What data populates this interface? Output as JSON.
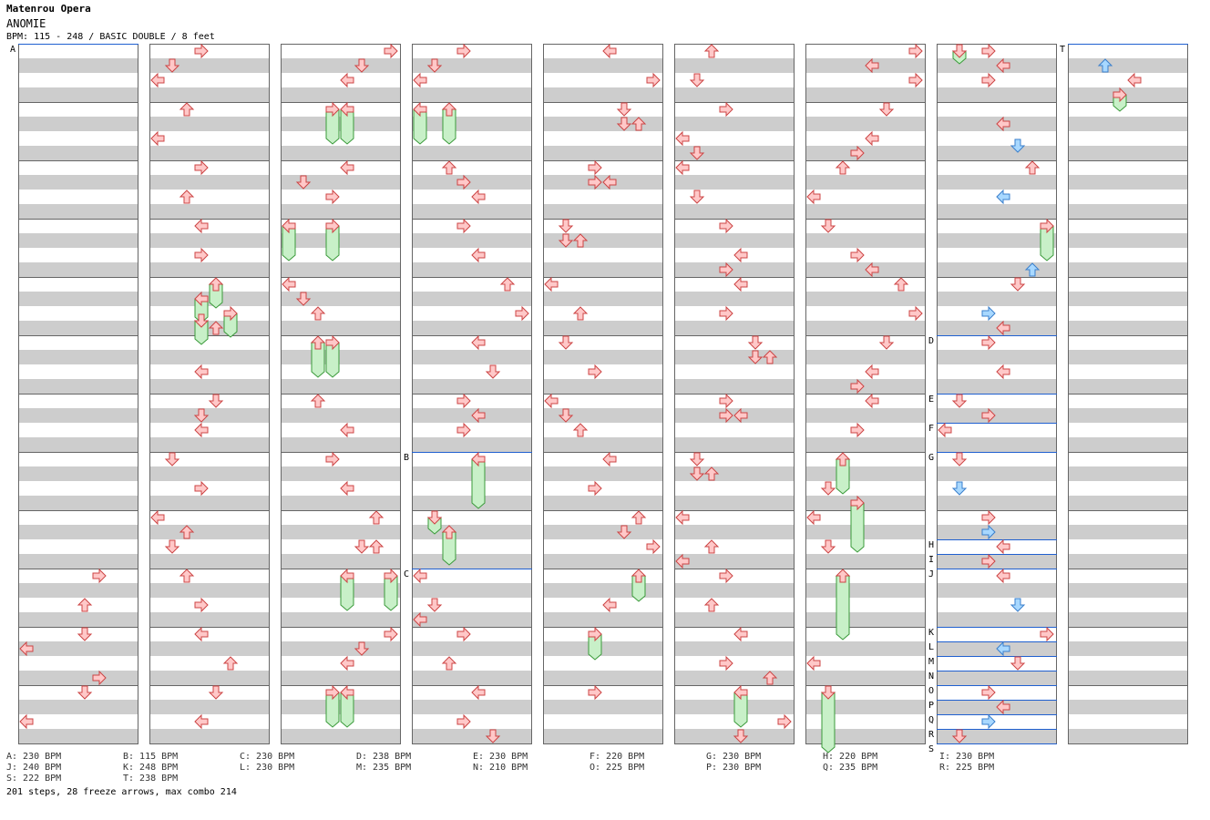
{
  "artist": "Matenrou Opera",
  "song_title": "ANOMIE",
  "chart_info": "BPM: 115 - 248 / BASIC DOUBLE / 8 feet",
  "stats": "201 steps, 28 freeze arrows, max combo 214",
  "colors": {
    "note": "#ffc8c8",
    "note_stroke": "#cc4444",
    "mine": "#a8d8ff",
    "mine_stroke": "#3a7fcc",
    "freeze": "#c8f0c8",
    "freeze_stroke": "#3a9a3a",
    "stripe": "#cdcdcd",
    "bpm_line": "#2060d0"
  },
  "columns": 9,
  "measures_per_column": 12,
  "bpm_changes": [
    {
      "label": "A",
      "bpm": "230 BPM",
      "column": 0,
      "measure": 0
    },
    {
      "label": "B",
      "bpm": "115 BPM",
      "column": 3,
      "measure": 7
    },
    {
      "label": "C",
      "bpm": "230 BPM",
      "column": 3,
      "measure": 9
    },
    {
      "label": "D",
      "bpm": "238 BPM",
      "column": 7,
      "measure": 5
    },
    {
      "label": "E",
      "bpm": "230 BPM",
      "column": 7,
      "measure": 6
    },
    {
      "label": "F",
      "bpm": "220 BPM",
      "column": 7,
      "measure": 6.5
    },
    {
      "label": "G",
      "bpm": "230 BPM",
      "column": 7,
      "measure": 7
    },
    {
      "label": "H",
      "bpm": "220 BPM",
      "column": 7,
      "measure": 8.5
    },
    {
      "label": "I",
      "bpm": "230 BPM",
      "column": 7,
      "measure": 8.75
    },
    {
      "label": "J",
      "bpm": "240 BPM",
      "column": 7,
      "measure": 9
    },
    {
      "label": "K",
      "bpm": "248 BPM",
      "column": 7,
      "measure": 10
    },
    {
      "label": "L",
      "bpm": "230 BPM",
      "column": 7,
      "measure": 10.25
    },
    {
      "label": "M",
      "bpm": "235 BPM",
      "column": 7,
      "measure": 10.5
    },
    {
      "label": "N",
      "bpm": "210 BPM",
      "column": 7,
      "measure": 10.75
    },
    {
      "label": "O",
      "bpm": "225 BPM",
      "column": 7,
      "measure": 11
    },
    {
      "label": "P",
      "bpm": "230 BPM",
      "column": 7,
      "measure": 11.25
    },
    {
      "label": "Q",
      "bpm": "235 BPM",
      "column": 7,
      "measure": 11.5
    },
    {
      "label": "R",
      "bpm": "225 BPM",
      "column": 7,
      "measure": 11.75
    },
    {
      "label": "S",
      "bpm": "222 BPM",
      "column": 7,
      "measure": 12
    },
    {
      "label": "T",
      "bpm": "238 BPM",
      "column": 8,
      "measure": 0
    }
  ],
  "legend": [
    [
      "A: 230 BPM",
      "B: 115 BPM",
      "C: 230 BPM",
      "D: 238 BPM",
      "E: 230 BPM",
      "F: 220 BPM",
      "G: 230 BPM",
      "H: 220 BPM",
      "I: 230 BPM"
    ],
    [
      "J: 240 BPM",
      "K: 248 BPM",
      "L: 230 BPM",
      "M: 235 BPM",
      "N: 210 BPM",
      "O: 225 BPM",
      "P: 230 BPM",
      "Q: 235 BPM",
      "R: 225 BPM"
    ],
    [
      "S: 222 BPM",
      "T: 238 BPM"
    ]
  ],
  "notes": [
    [
      0,
      9,
      0,
      5,
      "right"
    ],
    [
      0,
      9,
      2,
      4,
      "up"
    ],
    [
      0,
      10,
      0,
      4,
      "down"
    ],
    [
      0,
      10,
      1,
      0,
      "left"
    ],
    [
      0,
      10,
      3,
      5,
      "right"
    ],
    [
      0,
      11,
      0,
      4,
      "down"
    ],
    [
      0,
      11,
      2,
      0,
      "left"
    ],
    [
      1,
      0,
      0,
      3,
      "right"
    ],
    [
      1,
      0,
      1,
      1,
      "down"
    ],
    [
      1,
      0,
      2,
      0,
      "left"
    ],
    [
      1,
      1,
      0,
      2,
      "up"
    ],
    [
      1,
      1,
      2,
      0,
      "left"
    ],
    [
      1,
      2,
      0,
      3,
      "right"
    ],
    [
      1,
      2,
      2,
      2,
      "up"
    ],
    [
      1,
      3,
      0,
      3,
      "left"
    ],
    [
      1,
      3,
      2,
      3,
      "right"
    ],
    [
      1,
      4,
      0,
      4,
      "up",
      "f",
      20
    ],
    [
      1,
      4,
      1,
      3,
      "left",
      "f",
      20
    ],
    [
      1,
      4,
      2,
      5,
      "right",
      "f",
      20
    ],
    [
      1,
      4,
      3,
      4,
      "up"
    ],
    [
      1,
      4,
      2.5,
      3,
      "down",
      "f",
      20
    ],
    [
      1,
      5,
      2,
      3,
      "left"
    ],
    [
      1,
      6,
      0,
      4,
      "down"
    ],
    [
      1,
      6,
      1,
      3,
      "down"
    ],
    [
      1,
      6,
      2,
      3,
      "left"
    ],
    [
      1,
      7,
      0,
      1,
      "down"
    ],
    [
      1,
      7,
      2,
      3,
      "right"
    ],
    [
      1,
      8,
      0,
      0,
      "left"
    ],
    [
      1,
      8,
      1,
      2,
      "up"
    ],
    [
      1,
      8,
      2,
      1,
      "down"
    ],
    [
      1,
      9,
      0,
      2,
      "up"
    ],
    [
      1,
      9,
      2,
      3,
      "right"
    ],
    [
      1,
      10,
      0,
      3,
      "left"
    ],
    [
      1,
      10,
      2,
      5,
      "up"
    ],
    [
      1,
      11,
      0,
      4,
      "down"
    ],
    [
      1,
      11,
      2,
      3,
      "left"
    ],
    [
      2,
      0,
      0,
      7,
      "right"
    ],
    [
      2,
      0,
      1,
      5,
      "down"
    ],
    [
      2,
      0,
      2,
      4,
      "left"
    ],
    [
      2,
      1,
      0,
      3,
      "right",
      "f",
      32
    ],
    [
      2,
      1,
      0,
      4,
      "left",
      "f",
      32
    ],
    [
      2,
      2,
      0,
      4,
      "left"
    ],
    [
      2,
      2,
      1,
      1,
      "down"
    ],
    [
      2,
      2,
      2,
      3,
      "right"
    ],
    [
      2,
      3,
      0,
      0,
      "left",
      "f",
      32
    ],
    [
      2,
      3,
      0,
      3,
      "right",
      "f",
      32
    ],
    [
      2,
      4,
      0,
      0,
      "left"
    ],
    [
      2,
      4,
      1,
      1,
      "down"
    ],
    [
      2,
      4,
      2,
      2,
      "up"
    ],
    [
      2,
      5,
      0,
      2,
      "up",
      "f",
      32
    ],
    [
      2,
      5,
      0,
      3,
      "right",
      "f",
      32
    ],
    [
      2,
      6,
      0,
      2,
      "up"
    ],
    [
      2,
      6,
      2,
      4,
      "left"
    ],
    [
      2,
      7,
      0,
      3,
      "right"
    ],
    [
      2,
      7,
      2,
      4,
      "left"
    ],
    [
      2,
      8,
      0,
      6,
      "up"
    ],
    [
      2,
      8,
      2,
      5,
      "down"
    ],
    [
      2,
      8,
      2,
      6,
      "up"
    ],
    [
      2,
      9,
      0,
      4,
      "left",
      "f",
      32
    ],
    [
      2,
      9,
      0,
      7,
      "right",
      "f",
      32
    ],
    [
      2,
      10,
      0,
      7,
      "right"
    ],
    [
      2,
      10,
      1,
      5,
      "down"
    ],
    [
      2,
      10,
      2,
      4,
      "left"
    ],
    [
      2,
      11,
      0,
      3,
      "right",
      "f",
      32
    ],
    [
      2,
      11,
      0,
      4,
      "left",
      "f",
      32
    ],
    [
      3,
      0,
      0,
      3,
      "right"
    ],
    [
      3,
      0,
      1,
      1,
      "down"
    ],
    [
      3,
      0,
      2,
      0,
      "left"
    ],
    [
      3,
      1,
      0,
      0,
      "left",
      "f",
      32
    ],
    [
      3,
      1,
      0,
      2,
      "up",
      "f",
      32
    ],
    [
      3,
      2,
      0,
      2,
      "up"
    ],
    [
      3,
      2,
      1,
      3,
      "right"
    ],
    [
      3,
      2,
      2,
      4,
      "left"
    ],
    [
      3,
      3,
      0,
      3,
      "right"
    ],
    [
      3,
      3,
      2,
      4,
      "left"
    ],
    [
      3,
      4,
      0,
      6,
      "up"
    ],
    [
      3,
      4,
      2,
      7,
      "right"
    ],
    [
      3,
      5,
      0,
      4,
      "left"
    ],
    [
      3,
      5,
      2,
      5,
      "down"
    ],
    [
      3,
      6,
      0,
      3,
      "right"
    ],
    [
      3,
      6,
      1,
      4,
      "left"
    ],
    [
      3,
      6,
      2,
      3,
      "right"
    ],
    [
      3,
      7,
      0,
      4,
      "left",
      "f",
      48
    ],
    [
      3,
      8,
      0,
      1,
      "down",
      "f",
      12
    ],
    [
      3,
      8,
      1,
      2,
      "up",
      "f",
      30
    ],
    [
      3,
      9,
      0,
      0,
      "left"
    ],
    [
      3,
      9,
      2,
      1,
      "down"
    ],
    [
      3,
      9,
      3,
      0,
      "left"
    ],
    [
      3,
      10,
      0,
      3,
      "right"
    ],
    [
      3,
      10,
      2,
      2,
      "up"
    ],
    [
      3,
      11,
      0,
      4,
      "left"
    ],
    [
      3,
      11,
      2,
      3,
      "right"
    ],
    [
      3,
      11,
      3,
      5,
      "down"
    ],
    [
      4,
      0,
      0,
      4,
      "left"
    ],
    [
      4,
      0,
      2,
      7,
      "right"
    ],
    [
      4,
      1,
      0,
      5,
      "down"
    ],
    [
      4,
      1,
      1,
      5,
      "down"
    ],
    [
      4,
      1,
      1,
      6,
      "up"
    ],
    [
      4,
      2,
      0,
      3,
      "right"
    ],
    [
      4,
      2,
      1,
      3,
      "right"
    ],
    [
      4,
      2,
      1,
      4,
      "left"
    ],
    [
      4,
      3,
      0,
      1,
      "down"
    ],
    [
      4,
      3,
      1,
      1,
      "down"
    ],
    [
      4,
      3,
      1,
      2,
      "up"
    ],
    [
      4,
      4,
      0,
      0,
      "left"
    ],
    [
      4,
      4,
      2,
      2,
      "up"
    ],
    [
      4,
      5,
      0,
      1,
      "down"
    ],
    [
      4,
      5,
      2,
      3,
      "right"
    ],
    [
      4,
      6,
      0,
      0,
      "left"
    ],
    [
      4,
      6,
      1,
      1,
      "down"
    ],
    [
      4,
      6,
      2,
      2,
      "up"
    ],
    [
      4,
      7,
      0,
      4,
      "left"
    ],
    [
      4,
      7,
      2,
      3,
      "right"
    ],
    [
      4,
      8,
      0,
      6,
      "up"
    ],
    [
      4,
      8,
      1,
      5,
      "down"
    ],
    [
      4,
      8,
      2,
      7,
      "right"
    ],
    [
      4,
      9,
      0,
      6,
      "up",
      "f",
      22
    ],
    [
      4,
      9,
      2,
      4,
      "left"
    ],
    [
      4,
      10,
      0,
      3,
      "right",
      "f",
      22
    ],
    [
      4,
      11,
      0,
      3,
      "right"
    ],
    [
      5,
      0,
      0,
      2,
      "up"
    ],
    [
      5,
      0,
      2,
      1,
      "down"
    ],
    [
      5,
      1,
      0,
      3,
      "right"
    ],
    [
      5,
      1,
      2,
      0,
      "left"
    ],
    [
      5,
      1,
      3,
      1,
      "down"
    ],
    [
      5,
      2,
      0,
      0,
      "left"
    ],
    [
      5,
      2,
      2,
      1,
      "down"
    ],
    [
      5,
      3,
      0,
      3,
      "right"
    ],
    [
      5,
      3,
      2,
      4,
      "left"
    ],
    [
      5,
      3,
      3,
      3,
      "right"
    ],
    [
      5,
      4,
      0,
      4,
      "left"
    ],
    [
      5,
      4,
      2,
      3,
      "right"
    ],
    [
      5,
      5,
      0,
      5,
      "down"
    ],
    [
      5,
      5,
      1,
      5,
      "down"
    ],
    [
      5,
      5,
      1,
      6,
      "up"
    ],
    [
      5,
      6,
      0,
      3,
      "right"
    ],
    [
      5,
      6,
      1,
      3,
      "right"
    ],
    [
      5,
      6,
      1,
      4,
      "left"
    ],
    [
      5,
      7,
      0,
      1,
      "down"
    ],
    [
      5,
      7,
      1,
      1,
      "down"
    ],
    [
      5,
      7,
      1,
      2,
      "up"
    ],
    [
      5,
      8,
      0,
      0,
      "left"
    ],
    [
      5,
      8,
      2,
      2,
      "up"
    ],
    [
      5,
      8,
      3,
      0,
      "left"
    ],
    [
      5,
      9,
      0,
      3,
      "right"
    ],
    [
      5,
      9,
      2,
      2,
      "up"
    ],
    [
      5,
      10,
      0,
      4,
      "left"
    ],
    [
      5,
      10,
      2,
      3,
      "right"
    ],
    [
      5,
      10,
      3,
      6,
      "up"
    ],
    [
      5,
      11,
      0,
      4,
      "left",
      "f",
      32
    ],
    [
      5,
      11,
      2,
      7,
      "right"
    ],
    [
      5,
      11,
      3,
      4,
      "down"
    ],
    [
      6,
      0,
      0,
      7,
      "right"
    ],
    [
      6,
      0,
      1,
      4,
      "left"
    ],
    [
      6,
      0,
      2,
      7,
      "right"
    ],
    [
      6,
      1,
      0,
      5,
      "down"
    ],
    [
      6,
      1,
      2,
      4,
      "left"
    ],
    [
      6,
      1,
      3,
      3,
      "right"
    ],
    [
      6,
      2,
      0,
      2,
      "up"
    ],
    [
      6,
      2,
      2,
      0,
      "left"
    ],
    [
      6,
      3,
      0,
      1,
      "down"
    ],
    [
      6,
      3,
      2,
      3,
      "right"
    ],
    [
      6,
      3,
      3,
      4,
      "left"
    ],
    [
      6,
      4,
      0,
      6,
      "up"
    ],
    [
      6,
      4,
      2,
      7,
      "right"
    ],
    [
      6,
      5,
      0,
      5,
      "down"
    ],
    [
      6,
      5,
      2,
      4,
      "left"
    ],
    [
      6,
      5,
      3,
      3,
      "right"
    ],
    [
      6,
      6,
      0,
      4,
      "left"
    ],
    [
      6,
      6,
      2,
      3,
      "right"
    ],
    [
      6,
      7,
      0,
      2,
      "up",
      "f",
      32
    ],
    [
      6,
      7,
      2,
      1,
      "down"
    ],
    [
      6,
      7,
      3,
      3,
      "right",
      "f",
      48
    ],
    [
      6,
      8,
      0,
      0,
      "left"
    ],
    [
      6,
      8,
      2,
      1,
      "down"
    ],
    [
      6,
      9,
      0,
      2,
      "up",
      "f",
      64
    ],
    [
      6,
      10,
      2,
      0,
      "left"
    ],
    [
      6,
      11,
      0,
      1,
      "down",
      "f",
      60
    ],
    [
      7,
      0,
      0,
      1,
      "down",
      "f",
      8
    ],
    [
      7,
      0,
      0,
      3,
      "right"
    ],
    [
      7,
      0,
      1,
      4,
      "left"
    ],
    [
      7,
      0,
      2,
      3,
      "right"
    ],
    [
      7,
      1,
      1,
      4,
      "left"
    ],
    [
      7,
      1,
      2.5,
      5,
      "down",
      "m"
    ],
    [
      7,
      2,
      0,
      6,
      "up"
    ],
    [
      7,
      2,
      2,
      4,
      "left",
      "m"
    ],
    [
      7,
      3,
      0,
      7,
      "right",
      "f",
      32
    ],
    [
      7,
      3,
      3,
      6,
      "up",
      "m"
    ],
    [
      7,
      4,
      0,
      5,
      "down"
    ],
    [
      7,
      4,
      2,
      3,
      "right",
      "m"
    ],
    [
      7,
      4,
      3,
      4,
      "left"
    ],
    [
      7,
      5,
      0,
      3,
      "right"
    ],
    [
      7,
      5,
      2,
      4,
      "left"
    ],
    [
      7,
      6,
      0,
      1,
      "down"
    ],
    [
      7,
      6,
      1,
      3,
      "right"
    ],
    [
      7,
      6,
      2,
      0,
      "left"
    ],
    [
      7,
      7,
      0,
      1,
      "down"
    ],
    [
      7,
      7,
      2,
      1,
      "down",
      "m"
    ],
    [
      7,
      8,
      0,
      3,
      "right"
    ],
    [
      7,
      8,
      1,
      3,
      "right",
      "m"
    ],
    [
      7,
      8,
      2,
      4,
      "left"
    ],
    [
      7,
      8,
      3,
      3,
      "right"
    ],
    [
      7,
      9,
      0,
      4,
      "left"
    ],
    [
      7,
      9,
      2,
      5,
      "down",
      "m"
    ],
    [
      7,
      10,
      0,
      7,
      "right"
    ],
    [
      7,
      10,
      1,
      4,
      "left",
      "m"
    ],
    [
      7,
      10,
      2,
      5,
      "down"
    ],
    [
      7,
      11,
      0,
      3,
      "right"
    ],
    [
      7,
      11,
      1,
      4,
      "left"
    ],
    [
      7,
      11,
      2,
      3,
      "right",
      "m"
    ],
    [
      7,
      11,
      3,
      1,
      "down"
    ],
    [
      8,
      0,
      1,
      2,
      "up",
      "m"
    ],
    [
      8,
      0,
      2,
      4,
      "left"
    ],
    [
      8,
      0,
      3,
      3,
      "right",
      "f",
      12
    ]
  ]
}
